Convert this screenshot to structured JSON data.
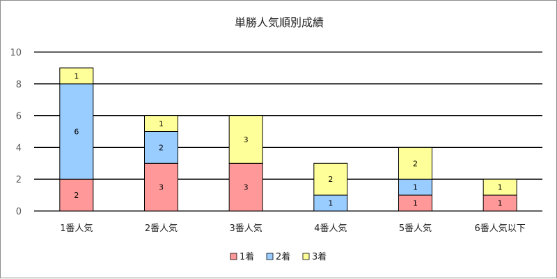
{
  "chart_data": {
    "type": "bar",
    "stacked": true,
    "title": "単勝人気順別成績",
    "categories": [
      "1番人気",
      "2番人気",
      "3番人気",
      "4番人気",
      "5番人気",
      "6番人気以下"
    ],
    "series": [
      {
        "name": "1着",
        "values": [
          2,
          3,
          3,
          0,
          1,
          1
        ],
        "color": "#ff9999"
      },
      {
        "name": "2着",
        "values": [
          6,
          2,
          0,
          1,
          1,
          0
        ],
        "color": "#99ccff"
      },
      {
        "name": "3着",
        "values": [
          1,
          1,
          3,
          2,
          2,
          1
        ],
        "color": "#ffff99"
      }
    ],
    "ylim": [
      0,
      10
    ],
    "yticks": [
      "0",
      "2",
      "4",
      "6",
      "8",
      "10"
    ],
    "grid": true,
    "legend_position": "bottom",
    "xlabel": "",
    "ylabel": ""
  }
}
